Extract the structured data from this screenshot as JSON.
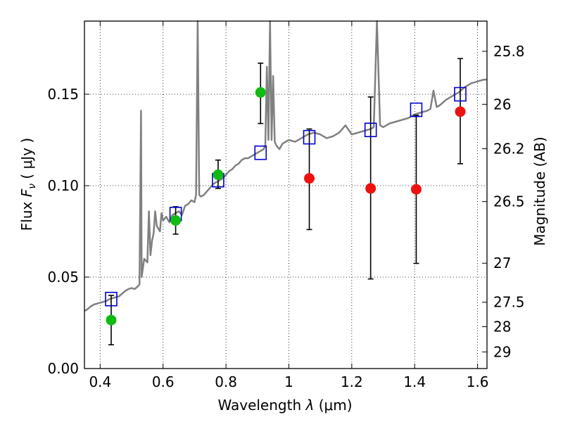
{
  "chart_data": {
    "type": "scatter",
    "xlabel": "Wavelength",
    "xlabel_symbol": "λ",
    "xlabel_unit": "(μm)",
    "ylabel": "Flux",
    "ylabel_symbol": "F",
    "ylabel_sub": "ν",
    "ylabel_unit_open": "(",
    "ylabel_unit": "μJy",
    "ylabel_unit_close": ")",
    "y2label": "Magnitude (AB)",
    "xlim": [
      0.35,
      1.63
    ],
    "ylim": [
      0.0,
      0.19
    ],
    "grid": true,
    "x_ticks": [
      0.4,
      0.6,
      0.8,
      1.0,
      1.2,
      1.4,
      1.6
    ],
    "x_tick_labels": [
      "0.4",
      "0.6",
      "0.8",
      "1",
      "1.2",
      "1.4",
      "1.6"
    ],
    "y_ticks": [
      0.0,
      0.05,
      0.1,
      0.15
    ],
    "y_tick_labels": [
      "0.00",
      "0.05",
      "0.10",
      "0.15"
    ],
    "y2_ticks": [
      {
        "label": "25.8",
        "flux": 0.1735
      },
      {
        "label": "26",
        "flux": 0.1445
      },
      {
        "label": "26.2",
        "flux": 0.1202
      },
      {
        "label": "26.5",
        "flux": 0.0913
      },
      {
        "label": "27",
        "flux": 0.0576
      },
      {
        "label": "27.5",
        "flux": 0.0363
      },
      {
        "label": "28",
        "flux": 0.0229
      },
      {
        "label": "29",
        "flux": 0.0091
      }
    ],
    "colors": {
      "model": "#808080",
      "box": "#0000cc",
      "green": "#11bb11",
      "red": "#ee1111",
      "errorbar": "#000000"
    },
    "series": [
      {
        "marker": "square",
        "x": [
          0.435,
          0.64,
          0.775,
          0.91,
          1.065,
          1.26,
          1.405,
          1.545
        ],
        "y": [
          0.038,
          0.0845,
          0.103,
          0.118,
          0.1265,
          0.1305,
          0.1415,
          0.15
        ]
      },
      {
        "marker": "circle-green",
        "x": [
          0.435,
          0.64,
          0.775,
          0.91
        ],
        "y": [
          0.0265,
          0.081,
          0.106,
          0.151
        ],
        "err_low": [
          0.0135,
          0.0075,
          0.0075,
          0.017
        ],
        "err_high": [
          0.0135,
          0.0075,
          0.008,
          0.016
        ]
      },
      {
        "marker": "circle-red",
        "x": [
          1.065,
          1.26,
          1.405,
          1.545
        ],
        "y": [
          0.104,
          0.0985,
          0.098,
          0.1405
        ],
        "err_low": [
          0.028,
          0.0495,
          0.0405,
          0.0285
        ],
        "err_high": [
          0.027,
          0.05,
          0.0405,
          0.029
        ]
      }
    ],
    "model_spectrum": [
      [
        0.35,
        0.0315
      ],
      [
        0.36,
        0.0325
      ],
      [
        0.37,
        0.034
      ],
      [
        0.38,
        0.035
      ],
      [
        0.39,
        0.0355
      ],
      [
        0.4,
        0.036
      ],
      [
        0.41,
        0.0365
      ],
      [
        0.42,
        0.037
      ],
      [
        0.43,
        0.038
      ],
      [
        0.44,
        0.0385
      ],
      [
        0.45,
        0.039
      ],
      [
        0.46,
        0.0395
      ],
      [
        0.47,
        0.041
      ],
      [
        0.48,
        0.0425
      ],
      [
        0.49,
        0.0435
      ],
      [
        0.5,
        0.044
      ],
      [
        0.51,
        0.0435
      ],
      [
        0.52,
        0.045
      ],
      [
        0.525,
        0.046
      ],
      [
        0.53,
        0.141
      ],
      [
        0.532,
        0.05
      ],
      [
        0.54,
        0.06
      ],
      [
        0.55,
        0.058
      ],
      [
        0.555,
        0.086
      ],
      [
        0.56,
        0.062
      ],
      [
        0.565,
        0.07
      ],
      [
        0.57,
        0.074
      ],
      [
        0.575,
        0.086
      ],
      [
        0.58,
        0.078
      ],
      [
        0.59,
        0.075
      ],
      [
        0.595,
        0.085
      ],
      [
        0.6,
        0.081
      ],
      [
        0.61,
        0.083
      ],
      [
        0.62,
        0.08
      ],
      [
        0.63,
        0.084
      ],
      [
        0.64,
        0.085
      ],
      [
        0.65,
        0.086
      ],
      [
        0.66,
        0.084
      ],
      [
        0.67,
        0.089
      ],
      [
        0.68,
        0.09
      ],
      [
        0.69,
        0.092
      ],
      [
        0.7,
        0.091
      ],
      [
        0.705,
        0.095
      ],
      [
        0.71,
        0.19
      ],
      [
        0.715,
        0.095
      ],
      [
        0.72,
        0.094
      ],
      [
        0.73,
        0.095
      ],
      [
        0.74,
        0.097
      ],
      [
        0.75,
        0.099
      ],
      [
        0.76,
        0.101
      ],
      [
        0.77,
        0.102
      ],
      [
        0.78,
        0.103
      ],
      [
        0.79,
        0.104
      ],
      [
        0.8,
        0.106
      ],
      [
        0.81,
        0.108
      ],
      [
        0.82,
        0.109
      ],
      [
        0.83,
        0.111
      ],
      [
        0.84,
        0.112
      ],
      [
        0.85,
        0.114
      ],
      [
        0.86,
        0.115
      ],
      [
        0.87,
        0.115
      ],
      [
        0.88,
        0.116
      ],
      [
        0.89,
        0.117
      ],
      [
        0.9,
        0.118
      ],
      [
        0.91,
        0.119
      ],
      [
        0.92,
        0.12
      ],
      [
        0.925,
        0.122
      ],
      [
        0.93,
        0.165
      ],
      [
        0.935,
        0.125
      ],
      [
        0.94,
        0.19
      ],
      [
        0.945,
        0.125
      ],
      [
        0.95,
        0.16
      ],
      [
        0.955,
        0.124
      ],
      [
        0.96,
        0.122
      ],
      [
        0.97,
        0.12
      ],
      [
        0.98,
        0.123
      ],
      [
        0.99,
        0.124
      ],
      [
        1.0,
        0.125
      ],
      [
        1.02,
        0.124
      ],
      [
        1.04,
        0.126
      ],
      [
        1.06,
        0.128
      ],
      [
        1.08,
        0.129
      ],
      [
        1.1,
        0.128
      ],
      [
        1.12,
        0.126
      ],
      [
        1.14,
        0.127
      ],
      [
        1.16,
        0.129
      ],
      [
        1.18,
        0.133
      ],
      [
        1.2,
        0.128
      ],
      [
        1.22,
        0.129
      ],
      [
        1.24,
        0.13
      ],
      [
        1.26,
        0.131
      ],
      [
        1.27,
        0.132
      ],
      [
        1.28,
        0.19
      ],
      [
        1.29,
        0.133
      ],
      [
        1.3,
        0.132
      ],
      [
        1.32,
        0.134
      ],
      [
        1.34,
        0.135
      ],
      [
        1.36,
        0.136
      ],
      [
        1.38,
        0.137
      ],
      [
        1.4,
        0.139
      ],
      [
        1.42,
        0.14
      ],
      [
        1.44,
        0.141
      ],
      [
        1.45,
        0.142
      ],
      [
        1.46,
        0.152
      ],
      [
        1.47,
        0.143
      ],
      [
        1.48,
        0.144
      ],
      [
        1.5,
        0.147
      ],
      [
        1.52,
        0.149
      ],
      [
        1.54,
        0.151
      ],
      [
        1.56,
        0.154
      ],
      [
        1.58,
        0.156
      ],
      [
        1.6,
        0.157
      ],
      [
        1.62,
        0.158
      ],
      [
        1.63,
        0.158
      ]
    ]
  }
}
